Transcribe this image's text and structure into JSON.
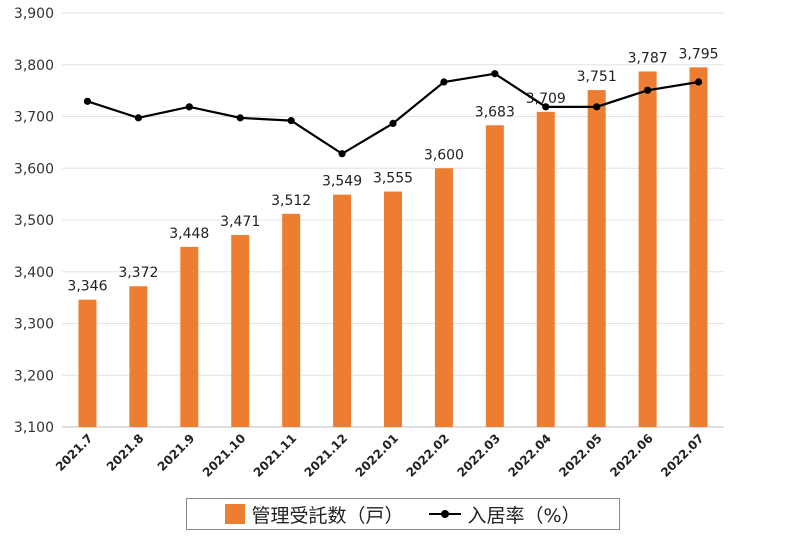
{
  "chart_data": {
    "type": "bar",
    "categories": [
      "2021.7",
      "2021.8",
      "2021.9",
      "2021.10",
      "2021.11",
      "2021.12",
      "2022.01",
      "2022.02",
      "2022.03",
      "2022.04",
      "2022.05",
      "2022.06",
      "2022.07"
    ],
    "series": [
      {
        "name": "管理受託数（戸）",
        "type": "bar",
        "color": "#ED7D31",
        "values": [
          3346,
          3372,
          3448,
          3471,
          3512,
          3549,
          3555,
          3600,
          3683,
          3709,
          3751,
          3787,
          3795
        ],
        "labels": [
          "3,346",
          "3,372",
          "3,448",
          "3,471",
          "3,512",
          "3,549",
          "3,555",
          "3,600",
          "3,683",
          "3,709",
          "3,751",
          "3,787",
          "3,795"
        ]
      },
      {
        "name": "入居率（%）",
        "type": "line",
        "color": "#000000",
        "values": [
          96.8,
          96.2,
          96.6,
          96.2,
          96.1,
          94.9,
          96.0,
          97.5,
          97.8,
          96.6,
          96.6,
          97.2,
          97.5
        ]
      }
    ],
    "y_left": {
      "min": 3100,
      "max": 3900,
      "step": 100,
      "tick_labels": [
        "3,100",
        "3,200",
        "3,300",
        "3,400",
        "3,500",
        "3,600",
        "3,700",
        "3,800",
        "3,900"
      ]
    },
    "y_right_range": [
      85,
      100
    ],
    "grid": true,
    "legend_position": "bottom"
  }
}
